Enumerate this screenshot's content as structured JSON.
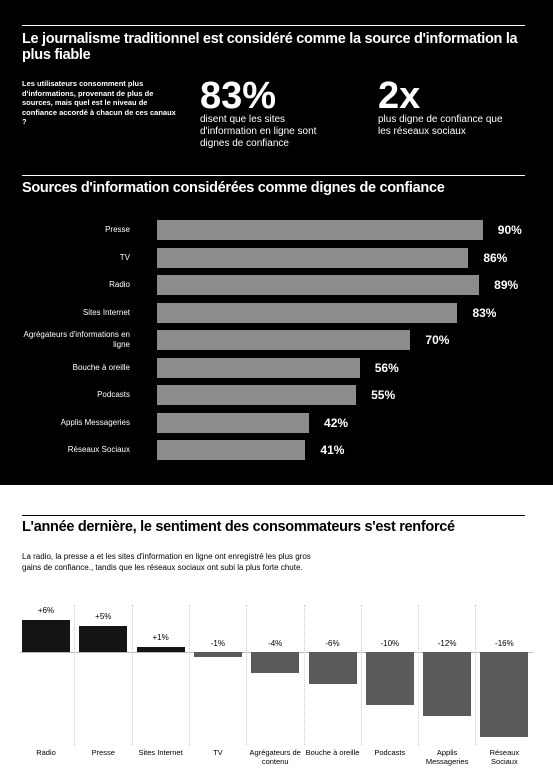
{
  "header": {
    "title": "Le journalisme traditionnel est considéré comme la source d'information la plus fiable",
    "intro": "Les utilisateurs consomment plus d'informations, provenant de plus de sources, mais quel est le niveau de confiance accordé à chacun de ces canaux ?"
  },
  "stats": [
    {
      "figure": "83%",
      "text": "disent que les sites d'information en ligne sont dignes de confiance"
    },
    {
      "figure": "2x",
      "text": "plus digne de confiance que les réseaux sociaux"
    }
  ],
  "chart_data": [
    {
      "type": "bar",
      "orientation": "horizontal",
      "title": "Sources d'information considérées comme dignes de confiance",
      "categories": [
        "Presse",
        "TV",
        "Radio",
        "Sites Internet",
        "Agrégateurs d'informations en ligne",
        "Bouche à oreille",
        "Podcasts",
        "Applis Messageries",
        "Réseaux Sociaux"
      ],
      "values": [
        90,
        86,
        89,
        83,
        70,
        56,
        55,
        42,
        41
      ],
      "value_labels": [
        "90%",
        "86%",
        "89%",
        "83%",
        "70%",
        "56%",
        "55%",
        "42%",
        "41%"
      ],
      "color": "#8c8c8c"
    },
    {
      "type": "bar",
      "orientation": "vertical",
      "title": "L'année dernière, le sentiment des consommateurs s'est renforcé",
      "subtitle": "La radio, la presse a et les sites d'information en ligne ont enregistré les plus gros gains de confiance., tandis que les réseaux sociaux ont subi la plus forte chute.",
      "categories": [
        "Radio",
        "Presse",
        "Sites Internet",
        "TV",
        "Agrégateurs de contenu",
        "Bouche à oreille",
        "Podcasts",
        "Applis Messageries",
        "Réseaux Sociaux"
      ],
      "values": [
        6,
        5,
        1,
        -1,
        -4,
        -6,
        -10,
        -12,
        -16
      ],
      "value_labels": [
        "+6%",
        "+5%",
        "+1%",
        "-1%",
        "-4%",
        "-6%",
        "-10%",
        "-12%",
        "-16%"
      ],
      "colors": [
        "#141414",
        "#141414",
        "#141414",
        "#5a5a5a",
        "#5a5a5a",
        "#5a5a5a",
        "#5a5a5a",
        "#5a5a5a",
        "#5a5a5a"
      ]
    }
  ]
}
